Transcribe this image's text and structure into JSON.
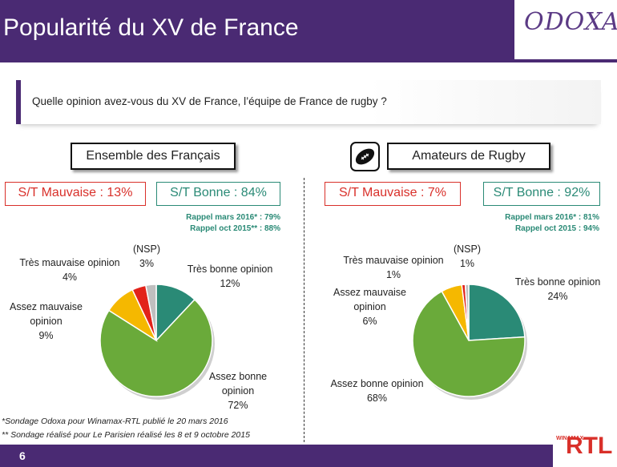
{
  "header": {
    "title": "Popularité du XV de France",
    "logo": "ODOXA"
  },
  "question": "Quelle opinion avez-vous du XV de France, l’équipe de France de rugby ?",
  "left": {
    "section_title": "Ensemble des Français",
    "st_mauvaise": "S/T Mauvaise : 13%",
    "st_bonne": "S/T Bonne : 84%",
    "rappel_1": "Rappel mars 2016* : 79%",
    "rappel_2": "Rappel oct 2015** : 88%",
    "labels": {
      "nsp": "(NSP)",
      "nsp_val": "3%",
      "tmo": "Très mauvaise opinion",
      "tmo_val": "4%",
      "amo_1": "Assez mauvaise",
      "amo_2": "opinion",
      "amo_val": "9%",
      "tbo": "Très bonne opinion",
      "tbo_val": "12%",
      "abo_1": "Assez bonne",
      "abo_2": "opinion",
      "abo_val": "72%"
    }
  },
  "right": {
    "section_title": "Amateurs de Rugby",
    "icon": "rugby-ball-icon",
    "st_mauvaise": "S/T Mauvaise : 7%",
    "st_bonne": "S/T Bonne : 92%",
    "rappel_1": "Rappel mars 2016* : 81%",
    "rappel_2": "Rappel oct 2015 : 94%",
    "labels": {
      "nsp": "(NSP)",
      "nsp_val": "1%",
      "tmo": "Très mauvaise opinion",
      "tmo_val": "1%",
      "amo_1": "Assez mauvaise",
      "amo_2": "opinion",
      "amo_val": "6%",
      "tbo": "Très bonne opinion",
      "tbo_val": "24%",
      "abo": "Assez bonne opinion",
      "abo_val": "68%"
    }
  },
  "footnotes": {
    "f1": "*Sondage Odoxa pour Winamax-RTL publié le 20 mars 2016",
    "f2": "** Sondage réalisé pour Le Parisien réalisé les 8 et 9 octobre 2015"
  },
  "page_number": "6",
  "partner": {
    "name": "RTL",
    "sub": "WINAMAX"
  },
  "colors": {
    "tres_bonne": "#2a8a76",
    "assez_bonne": "#6aaa3a",
    "assez_mauvaise": "#f5b800",
    "tres_mauvaise": "#e2231a",
    "nsp": "#bfbfbf"
  },
  "chart_data": [
    {
      "type": "pie",
      "title": "Ensemble des Français",
      "categories": [
        "Très bonne opinion",
        "Assez bonne opinion",
        "Assez mauvaise opinion",
        "Très mauvaise opinion",
        "(NSP)"
      ],
      "values": [
        12,
        72,
        9,
        4,
        3
      ]
    },
    {
      "type": "pie",
      "title": "Amateurs de Rugby",
      "categories": [
        "Très bonne opinion",
        "Assez bonne opinion",
        "Assez mauvaise opinion",
        "Très mauvaise opinion",
        "(NSP)"
      ],
      "values": [
        24,
        68,
        6,
        1,
        1
      ]
    }
  ]
}
